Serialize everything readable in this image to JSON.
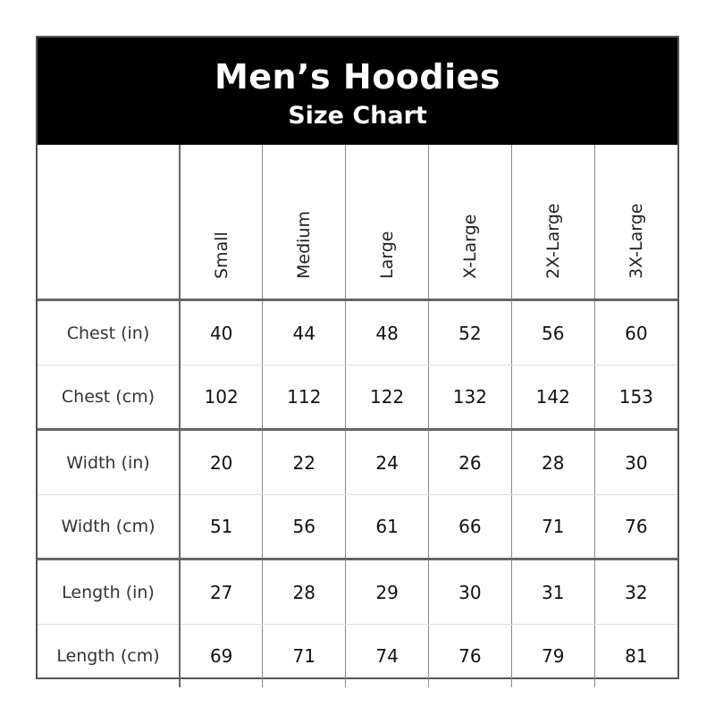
{
  "header": {
    "title": "Men’s Hoodies",
    "subtitle": "Size Chart"
  },
  "sizes": [
    "Small",
    "Medium",
    "Large",
    "X-Large",
    "2X-Large",
    "3X-Large"
  ],
  "rows": [
    {
      "label": "Chest (in)",
      "values": [
        "40",
        "44",
        "48",
        "52",
        "56",
        "60"
      ]
    },
    {
      "label": "Chest (cm)",
      "values": [
        "102",
        "112",
        "122",
        "132",
        "142",
        "153"
      ]
    },
    {
      "label": "Width (in)",
      "values": [
        "20",
        "22",
        "24",
        "26",
        "28",
        "30"
      ]
    },
    {
      "label": "Width (cm)",
      "values": [
        "51",
        "56",
        "61",
        "66",
        "71",
        "76"
      ]
    },
    {
      "label": "Length (in)",
      "values": [
        "27",
        "28",
        "29",
        "30",
        "31",
        "32"
      ]
    },
    {
      "label": "Length (cm)",
      "values": [
        "69",
        "71",
        "74",
        "76",
        "79",
        "81"
      ]
    }
  ]
}
